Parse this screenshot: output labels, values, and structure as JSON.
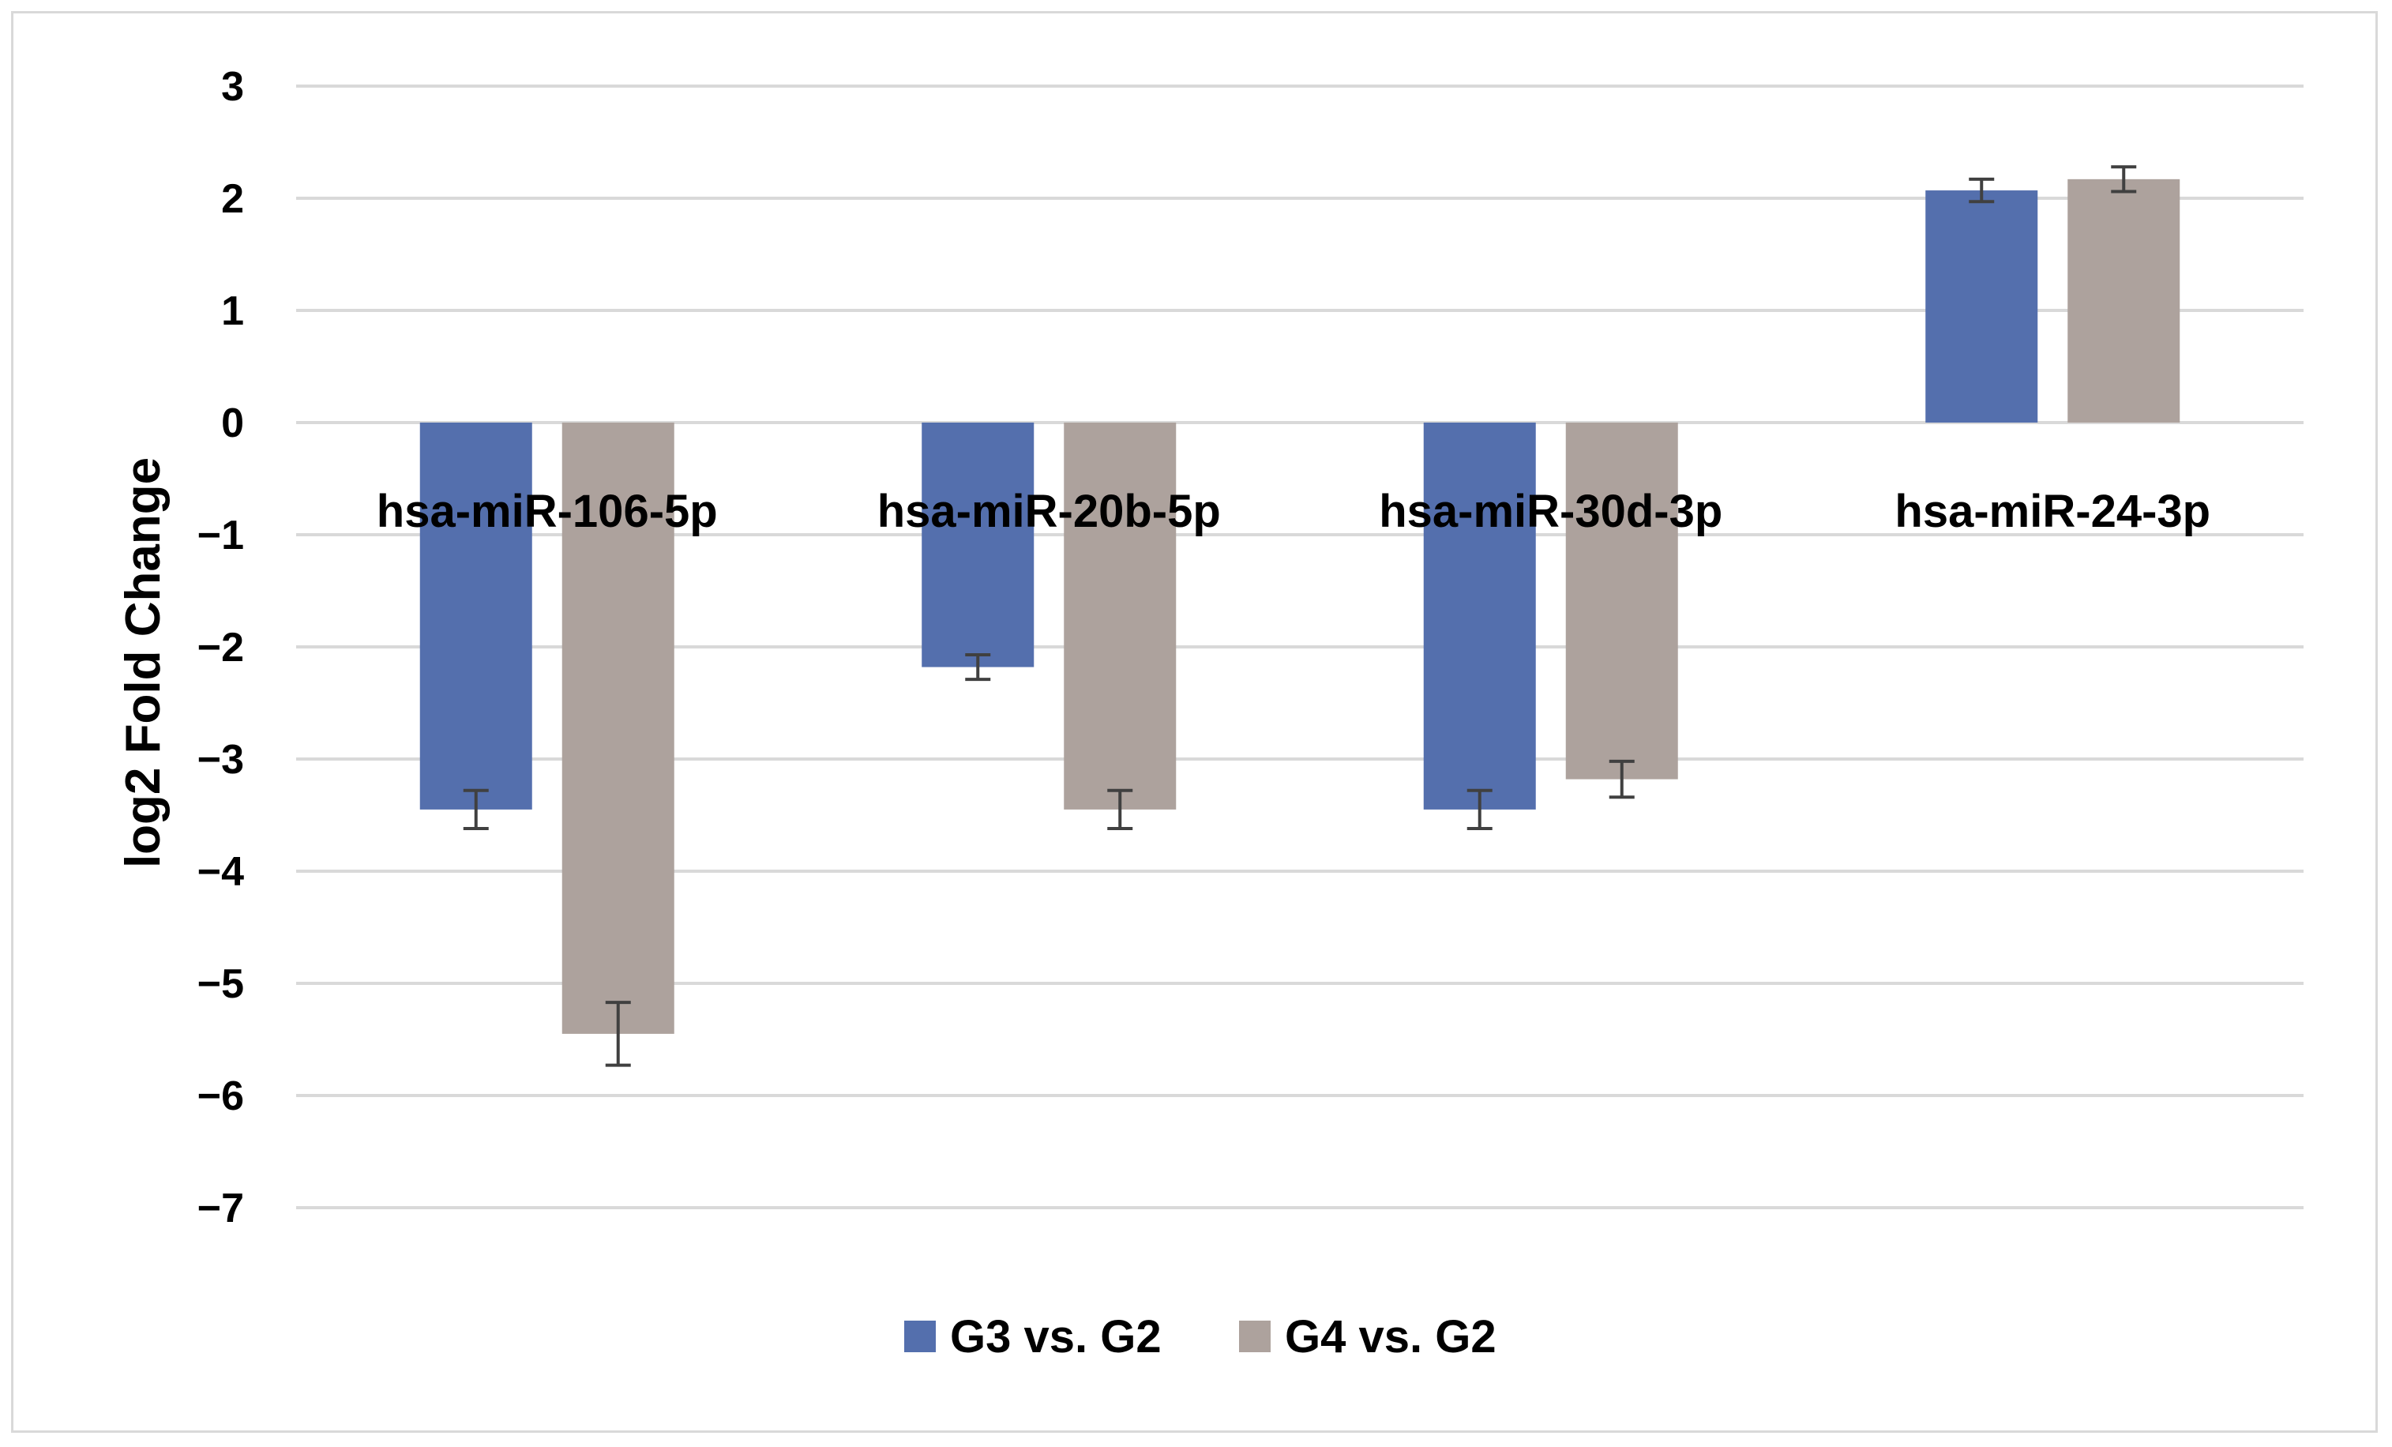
{
  "chart_data": {
    "type": "bar",
    "title": "",
    "xlabel": "",
    "ylabel": "log2 Fold Change",
    "ylim": [
      -7,
      3
    ],
    "yticks": [
      3,
      2,
      1,
      0,
      -1,
      -2,
      -3,
      -4,
      -5,
      -6,
      -7
    ],
    "ytick_labels": [
      "3",
      "2",
      "1",
      "0",
      "−1",
      "−2",
      "−3",
      "−4",
      "−5",
      "−6",
      "−7"
    ],
    "grid": true,
    "categories": [
      "hsa-miR-106-5p",
      "hsa-miR-20b-5p",
      "hsa-miR-30d-3p",
      "hsa-miR-24-3p"
    ],
    "series": [
      {
        "name": "G3 vs. G2",
        "color": "#546fad",
        "values": [
          -3.45,
          -2.18,
          -3.45,
          2.07
        ],
        "errors": [
          0.17,
          0.11,
          0.17,
          0.1
        ]
      },
      {
        "name": "G4 vs. G2",
        "color": "#ada29d",
        "values": [
          -5.45,
          -3.45,
          -3.18,
          2.17
        ],
        "errors": [
          0.28,
          0.17,
          0.16,
          0.11
        ]
      }
    ],
    "legend_position": "bottom-center"
  }
}
